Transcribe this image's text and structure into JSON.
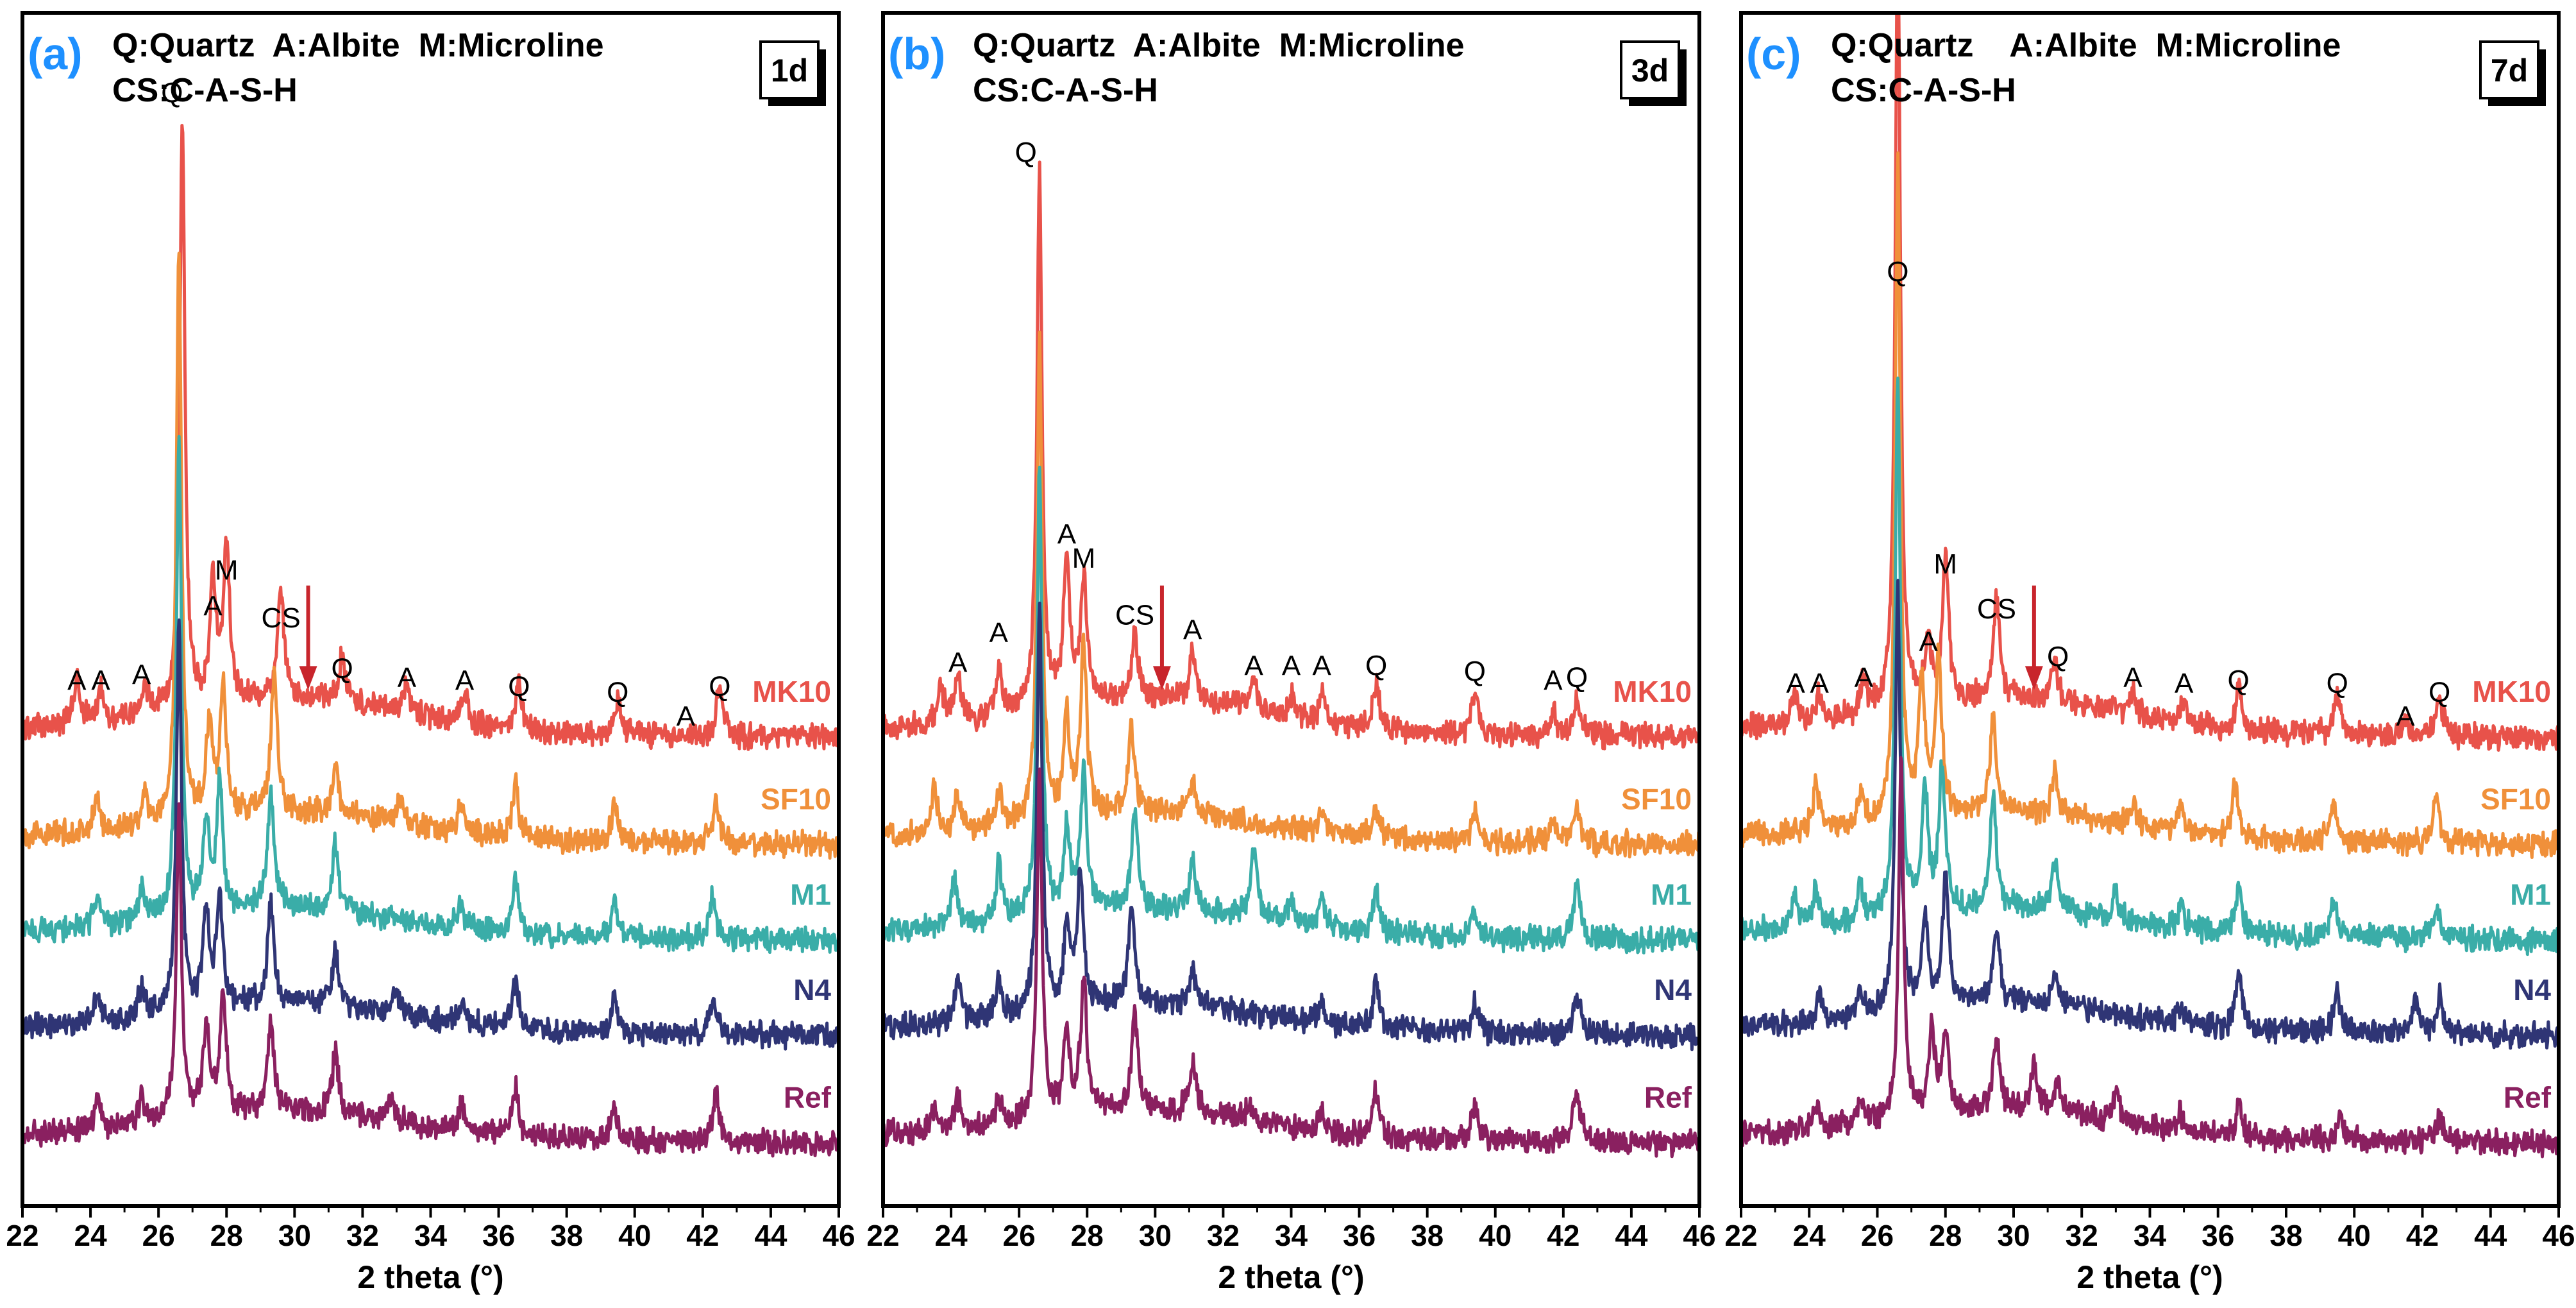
{
  "figure": {
    "legend_line1": "Q:Quartz  A:Albite  M:Microline",
    "legend_line1_c": "Q:Quartz    A:Albite  M:Microline",
    "legend_line2": "CS:C-A-S-H"
  },
  "colors": {
    "MK10": "#e8524a",
    "SF10": "#f0903a",
    "M1": "#3aada8",
    "N4": "#2f3575",
    "Ref": "#8a2060",
    "panel_letter": "#1e90ff",
    "arrow": "#c8252c"
  },
  "chart_data": [
    {
      "type": "line",
      "panel": "(a)",
      "age": "1d",
      "xlabel": "2 theta (°)",
      "xlim": [
        22,
        46
      ],
      "xticks": [
        "22",
        "24",
        "26",
        "28",
        "30",
        "32",
        "34",
        "36",
        "38",
        "40",
        "42",
        "44",
        "46"
      ],
      "series": [
        {
          "name": "MK10",
          "baseline": 8.0,
          "slope": 0.25,
          "peaks": [
            [
              23.6,
              0.8
            ],
            [
              24.3,
              0.6
            ],
            [
              25.6,
              0.5
            ],
            [
              26.7,
              10.0
            ],
            [
              27.6,
              2.0
            ],
            [
              28.0,
              2.6
            ],
            [
              29.6,
              1.8
            ],
            [
              31.4,
              0.8
            ],
            [
              33.3,
              0.5
            ],
            [
              35.0,
              0.5
            ],
            [
              36.6,
              0.8
            ],
            [
              39.5,
              0.6
            ],
            [
              42.5,
              0.8
            ]
          ]
        },
        {
          "name": "SF10",
          "baseline": 6.2,
          "slope": 0.2,
          "peaks": [
            [
              24.2,
              0.5
            ],
            [
              25.6,
              0.5
            ],
            [
              26.6,
              9.5
            ],
            [
              27.5,
              1.6
            ],
            [
              27.9,
              2.1
            ],
            [
              29.4,
              2.3
            ],
            [
              31.2,
              0.8
            ],
            [
              33.1,
              0.4
            ],
            [
              34.9,
              0.5
            ],
            [
              36.5,
              0.9
            ],
            [
              39.4,
              0.6
            ],
            [
              42.4,
              0.7
            ]
          ]
        },
        {
          "name": "M1",
          "baseline": 4.6,
          "slope": 0.2,
          "peaks": [
            [
              24.2,
              0.5
            ],
            [
              25.5,
              0.5
            ],
            [
              26.6,
              8.0
            ],
            [
              27.4,
              1.5
            ],
            [
              27.8,
              2.1
            ],
            [
              29.3,
              2.0
            ],
            [
              31.2,
              1.1
            ],
            [
              34.9,
              0.4
            ],
            [
              36.5,
              0.9
            ],
            [
              39.4,
              0.6
            ],
            [
              42.3,
              0.7
            ]
          ]
        },
        {
          "name": "N4",
          "baseline": 3.0,
          "slope": 0.2,
          "peaks": [
            [
              24.2,
              0.5
            ],
            [
              25.5,
              0.5
            ],
            [
              26.6,
              6.5
            ],
            [
              27.4,
              1.6
            ],
            [
              27.8,
              1.8
            ],
            [
              29.3,
              1.7
            ],
            [
              31.2,
              0.9
            ],
            [
              33.0,
              0.4
            ],
            [
              34.9,
              0.4
            ],
            [
              36.5,
              0.8
            ],
            [
              39.4,
              0.6
            ],
            [
              42.3,
              0.6
            ]
          ]
        },
        {
          "name": "Ref",
          "baseline": 1.2,
          "slope": 0.2,
          "peaks": [
            [
              24.2,
              0.5
            ],
            [
              25.5,
              0.5
            ],
            [
              26.6,
              5.2
            ],
            [
              27.4,
              1.5
            ],
            [
              27.9,
              2.0
            ],
            [
              29.3,
              1.5
            ],
            [
              31.2,
              1.0
            ],
            [
              32.8,
              0.4
            ],
            [
              34.9,
              0.4
            ],
            [
              36.5,
              0.8
            ],
            [
              39.4,
              0.6
            ],
            [
              42.4,
              0.8
            ]
          ]
        }
      ],
      "annotations": [
        {
          "text": "Q",
          "x": 26.4,
          "y": 18.5
        },
        {
          "text": "M",
          "x": 28.0,
          "y": 10.5
        },
        {
          "text": "A",
          "x": 27.6,
          "y": 9.9
        },
        {
          "text": "CS",
          "x": 29.6,
          "y": 9.7
        },
        {
          "text": "Q",
          "x": 31.4,
          "y": 8.85
        },
        {
          "text": "A",
          "x": 23.6,
          "y": 8.65
        },
        {
          "text": "A",
          "x": 24.3,
          "y": 8.65
        },
        {
          "text": "A",
          "x": 25.5,
          "y": 8.75
        },
        {
          "text": "A",
          "x": 33.3,
          "y": 8.7
        },
        {
          "text": "A",
          "x": 35.0,
          "y": 8.65
        },
        {
          "text": "Q",
          "x": 36.6,
          "y": 8.55
        },
        {
          "text": "Q",
          "x": 39.5,
          "y": 8.45
        },
        {
          "text": "A",
          "x": 41.5,
          "y": 8.05
        },
        {
          "text": "Q",
          "x": 42.5,
          "y": 8.55
        }
      ],
      "arrow_x": 30.4
    },
    {
      "type": "line",
      "panel": "(b)",
      "age": "3d",
      "xlabel": "2 theta (°)",
      "xlim": [
        22,
        46
      ],
      "xticks": [
        "22",
        "24",
        "26",
        "28",
        "30",
        "32",
        "34",
        "36",
        "38",
        "40",
        "42",
        "44",
        "46"
      ],
      "series": [
        {
          "name": "MK10",
          "baseline": 8.0,
          "slope": 0.25,
          "peaks": [
            [
              23.7,
              0.6
            ],
            [
              24.2,
              0.8
            ],
            [
              25.4,
              0.8
            ],
            [
              26.6,
              9.0
            ],
            [
              27.4,
              2.4
            ],
            [
              27.9,
              2.1
            ],
            [
              29.4,
              1.1
            ],
            [
              31.1,
              0.8
            ],
            [
              32.9,
              0.5
            ],
            [
              34.0,
              0.4
            ],
            [
              34.9,
              0.5
            ],
            [
              36.5,
              0.8
            ],
            [
              39.4,
              0.7
            ],
            [
              41.7,
              0.4
            ],
            [
              42.4,
              0.6
            ]
          ]
        },
        {
          "name": "SF10",
          "baseline": 6.2,
          "slope": 0.2,
          "peaks": [
            [
              23.5,
              0.7
            ],
            [
              24.2,
              0.6
            ],
            [
              25.4,
              0.6
            ],
            [
              26.6,
              8.0
            ],
            [
              27.4,
              1.6
            ],
            [
              27.9,
              2.8
            ],
            [
              29.3,
              1.4
            ],
            [
              31.1,
              0.6
            ],
            [
              34.9,
              0.4
            ],
            [
              36.5,
              0.5
            ],
            [
              39.4,
              0.5
            ],
            [
              41.7,
              0.4
            ],
            [
              42.4,
              0.6
            ]
          ]
        },
        {
          "name": "M1",
          "baseline": 4.6,
          "slope": 0.2,
          "peaks": [
            [
              24.1,
              0.8
            ],
            [
              25.4,
              0.9
            ],
            [
              26.6,
              7.5
            ],
            [
              27.4,
              1.4
            ],
            [
              27.9,
              2.3
            ],
            [
              29.4,
              1.6
            ],
            [
              31.1,
              0.8
            ],
            [
              32.9,
              1.2
            ],
            [
              34.0,
              0.4
            ],
            [
              34.9,
              0.5
            ],
            [
              36.5,
              0.7
            ],
            [
              39.4,
              0.5
            ],
            [
              42.4,
              0.9
            ]
          ]
        },
        {
          "name": "N4",
          "baseline": 3.0,
          "slope": 0.2,
          "peaks": [
            [
              24.2,
              0.7
            ],
            [
              25.4,
              0.6
            ],
            [
              26.6,
              6.8
            ],
            [
              27.4,
              1.4
            ],
            [
              27.8,
              2.2
            ],
            [
              29.3,
              1.6
            ],
            [
              31.1,
              0.6
            ],
            [
              34.9,
              0.4
            ],
            [
              36.5,
              0.8
            ],
            [
              39.4,
              0.5
            ],
            [
              42.4,
              0.7
            ]
          ]
        },
        {
          "name": "Ref",
          "baseline": 1.2,
          "slope": 0.2,
          "peaks": [
            [
              23.5,
              0.4
            ],
            [
              24.2,
              0.5
            ],
            [
              25.4,
              0.4
            ],
            [
              26.6,
              5.8
            ],
            [
              27.4,
              1.4
            ],
            [
              27.9,
              2.2
            ],
            [
              29.4,
              1.6
            ],
            [
              31.1,
              0.9
            ],
            [
              32.8,
              0.3
            ],
            [
              34.9,
              0.3
            ],
            [
              36.5,
              0.8
            ],
            [
              39.4,
              0.6
            ],
            [
              42.4,
              0.9
            ]
          ]
        }
      ],
      "annotations": [
        {
          "text": "Q",
          "x": 26.2,
          "y": 17.5
        },
        {
          "text": "A",
          "x": 27.4,
          "y": 11.1
        },
        {
          "text": "M",
          "x": 27.9,
          "y": 10.7
        },
        {
          "text": "CS",
          "x": 29.4,
          "y": 9.75
        },
        {
          "text": "A",
          "x": 31.1,
          "y": 9.5
        },
        {
          "text": "A",
          "x": 24.2,
          "y": 8.95
        },
        {
          "text": "A",
          "x": 25.4,
          "y": 9.45
        },
        {
          "text": "A",
          "x": 32.9,
          "y": 8.9
        },
        {
          "text": "A",
          "x": 34.0,
          "y": 8.9
        },
        {
          "text": "A",
          "x": 34.9,
          "y": 8.9
        },
        {
          "text": "Q",
          "x": 36.5,
          "y": 8.9
        },
        {
          "text": "Q",
          "x": 39.4,
          "y": 8.8
        },
        {
          "text": "A",
          "x": 41.7,
          "y": 8.65
        },
        {
          "text": "Q",
          "x": 42.4,
          "y": 8.7
        }
      ],
      "arrow_x": 30.2
    },
    {
      "type": "line",
      "panel": "(c)",
      "age": "7d",
      "xlabel": "2 theta (°)",
      "xlim": [
        22,
        46
      ],
      "xticks": [
        "22",
        "24",
        "26",
        "28",
        "30",
        "32",
        "34",
        "36",
        "38",
        "40",
        "42",
        "44",
        "46"
      ],
      "series": [
        {
          "name": "MK10",
          "baseline": 8.0,
          "slope": 0.25,
          "peaks": [
            [
              23.6,
              0.5
            ],
            [
              24.3,
              0.5
            ],
            [
              25.6,
              0.6
            ],
            [
              26.6,
              13.2
            ],
            [
              27.5,
              1.0
            ],
            [
              28.0,
              2.4
            ],
            [
              29.5,
              1.7
            ],
            [
              31.2,
              0.7
            ],
            [
              33.5,
              0.4
            ],
            [
              35.0,
              0.4
            ],
            [
              36.6,
              0.7
            ],
            [
              39.5,
              0.6
            ],
            [
              41.5,
              0.3
            ],
            [
              42.5,
              0.6
            ]
          ]
        },
        {
          "name": "SF10",
          "baseline": 6.2,
          "slope": 0.2,
          "peaks": [
            [
              24.2,
              0.8
            ],
            [
              25.5,
              0.5
            ],
            [
              26.6,
              11.0
            ],
            [
              27.3,
              2.2
            ],
            [
              27.8,
              2.6
            ],
            [
              29.4,
              1.6
            ],
            [
              31.2,
              0.7
            ],
            [
              33.5,
              0.4
            ],
            [
              34.9,
              0.5
            ],
            [
              36.5,
              0.9
            ],
            [
              39.4,
              0.6
            ],
            [
              42.4,
              0.8
            ]
          ]
        },
        {
          "name": "M1",
          "baseline": 4.6,
          "slope": 0.2,
          "peaks": [
            [
              23.6,
              0.6
            ],
            [
              24.2,
              0.6
            ],
            [
              25.5,
              0.6
            ],
            [
              26.6,
              9.0
            ],
            [
              27.4,
              2.0
            ],
            [
              27.9,
              2.4
            ],
            [
              29.4,
              1.9
            ],
            [
              31.2,
              0.8
            ],
            [
              33.0,
              0.4
            ],
            [
              34.9,
              0.4
            ],
            [
              36.6,
              0.8
            ],
            [
              39.4,
              0.6
            ],
            [
              42.4,
              0.6
            ]
          ]
        },
        {
          "name": "N4",
          "baseline": 3.0,
          "slope": 0.2,
          "peaks": [
            [
              24.3,
              0.5
            ],
            [
              25.5,
              0.4
            ],
            [
              26.6,
              7.2
            ],
            [
              27.4,
              1.6
            ],
            [
              28.0,
              2.1
            ],
            [
              29.5,
              1.3
            ],
            [
              31.2,
              0.5
            ],
            [
              34.9,
              0.3
            ],
            [
              36.6,
              1.0
            ],
            [
              39.5,
              0.7
            ],
            [
              41.8,
              0.6
            ],
            [
              42.5,
              0.6
            ]
          ]
        },
        {
          "name": "Ref",
          "baseline": 1.2,
          "slope": 0.2,
          "peaks": [
            [
              24.2,
              0.4
            ],
            [
              25.5,
              0.4
            ],
            [
              26.7,
              6.0
            ],
            [
              27.6,
              1.4
            ],
            [
              28.0,
              1.3
            ],
            [
              29.5,
              1.3
            ],
            [
              30.6,
              0.8
            ],
            [
              31.3,
              0.6
            ],
            [
              33.0,
              0.5
            ],
            [
              34.9,
              0.3
            ],
            [
              36.6,
              0.5
            ],
            [
              39.6,
              0.4
            ],
            [
              42.5,
              0.4
            ]
          ]
        }
      ],
      "annotations": [
        {
          "text": "Q",
          "x": 26.6,
          "y": 15.5
        },
        {
          "text": "M",
          "x": 28.0,
          "y": 10.6
        },
        {
          "text": "A",
          "x": 27.5,
          "y": 9.3
        },
        {
          "text": "CS",
          "x": 29.5,
          "y": 9.85
        },
        {
          "text": "Q",
          "x": 31.3,
          "y": 9.05
        },
        {
          "text": "A",
          "x": 23.6,
          "y": 8.6
        },
        {
          "text": "A",
          "x": 24.3,
          "y": 8.6
        },
        {
          "text": "A",
          "x": 25.6,
          "y": 8.7
        },
        {
          "text": "A",
          "x": 33.5,
          "y": 8.7
        },
        {
          "text": "A",
          "x": 35.0,
          "y": 8.6
        },
        {
          "text": "Q",
          "x": 36.6,
          "y": 8.65
        },
        {
          "text": "Q",
          "x": 39.5,
          "y": 8.6
        },
        {
          "text": "A",
          "x": 41.5,
          "y": 8.05
        },
        {
          "text": "Q",
          "x": 42.5,
          "y": 8.45
        }
      ],
      "arrow_x": 30.6
    }
  ]
}
